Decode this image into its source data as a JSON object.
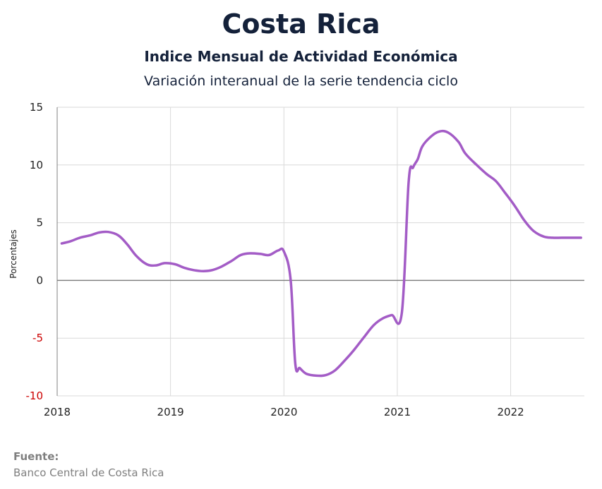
{
  "header": {
    "title": "Costa Rica",
    "subtitle": "Indice Mensual de  Actividad Económica",
    "subsubtitle": "Variación interanual de la serie tendencia ciclo"
  },
  "source": {
    "label": "Fuente:",
    "value": "Banco Central de Costa Rica"
  },
  "colors": {
    "line": "#a35cc6",
    "grid": "#d9d9d9",
    "zero_line": "#808080",
    "negative_tick": "#cc0000",
    "text": "#14213a"
  },
  "chart_data": {
    "type": "line",
    "title": "Costa Rica",
    "xlabel": "",
    "ylabel": "Porcentajes",
    "ylim": [
      -10,
      15
    ],
    "xlim": [
      2018,
      2022.65
    ],
    "yticks": [
      15,
      10,
      5,
      0,
      -5,
      -10
    ],
    "xticks": [
      "2018",
      "2019",
      "2020",
      "2021",
      "2022"
    ],
    "grid": true,
    "legend": "none",
    "series": [
      {
        "x": [
          2018.04,
          2018.12,
          2018.2,
          2018.29,
          2018.37,
          2018.45,
          2018.54,
          2018.62,
          2018.7,
          2018.79,
          2018.87,
          2018.95,
          2019.04,
          2019.12,
          2019.2,
          2019.29,
          2019.37,
          2019.45,
          2019.54,
          2019.62,
          2019.7,
          2019.79,
          2019.87,
          2019.95,
          2020.0,
          2020.06,
          2020.1,
          2020.14,
          2020.2,
          2020.29,
          2020.37,
          2020.45,
          2020.54,
          2020.62,
          2020.7,
          2020.79,
          2020.87,
          2020.95,
          2021.04,
          2021.1,
          2021.14,
          2021.18,
          2021.22,
          2021.29,
          2021.37,
          2021.45,
          2021.54,
          2021.6,
          2021.7,
          2021.79,
          2021.87,
          2021.95,
          2022.04,
          2022.12,
          2022.2,
          2022.29,
          2022.37,
          2022.45,
          2022.54,
          2022.62
        ],
        "y": [
          3.2,
          3.4,
          3.7,
          3.9,
          4.15,
          4.2,
          3.9,
          3.1,
          2.1,
          1.4,
          1.3,
          1.5,
          1.4,
          1.1,
          0.9,
          0.8,
          0.9,
          1.2,
          1.7,
          2.2,
          2.35,
          2.3,
          2.2,
          2.6,
          2.5,
          0.0,
          -7.2,
          -7.6,
          -8.1,
          -8.25,
          -8.2,
          -7.8,
          -6.9,
          -6.0,
          -5.0,
          -3.9,
          -3.3,
          -3.0,
          -2.8,
          8.5,
          9.8,
          10.5,
          11.6,
          12.4,
          12.9,
          12.8,
          12.0,
          11.0,
          10.0,
          9.2,
          8.6,
          7.6,
          6.4,
          5.2,
          4.3,
          3.8,
          3.7,
          3.7,
          3.7,
          3.7
        ]
      }
    ]
  }
}
